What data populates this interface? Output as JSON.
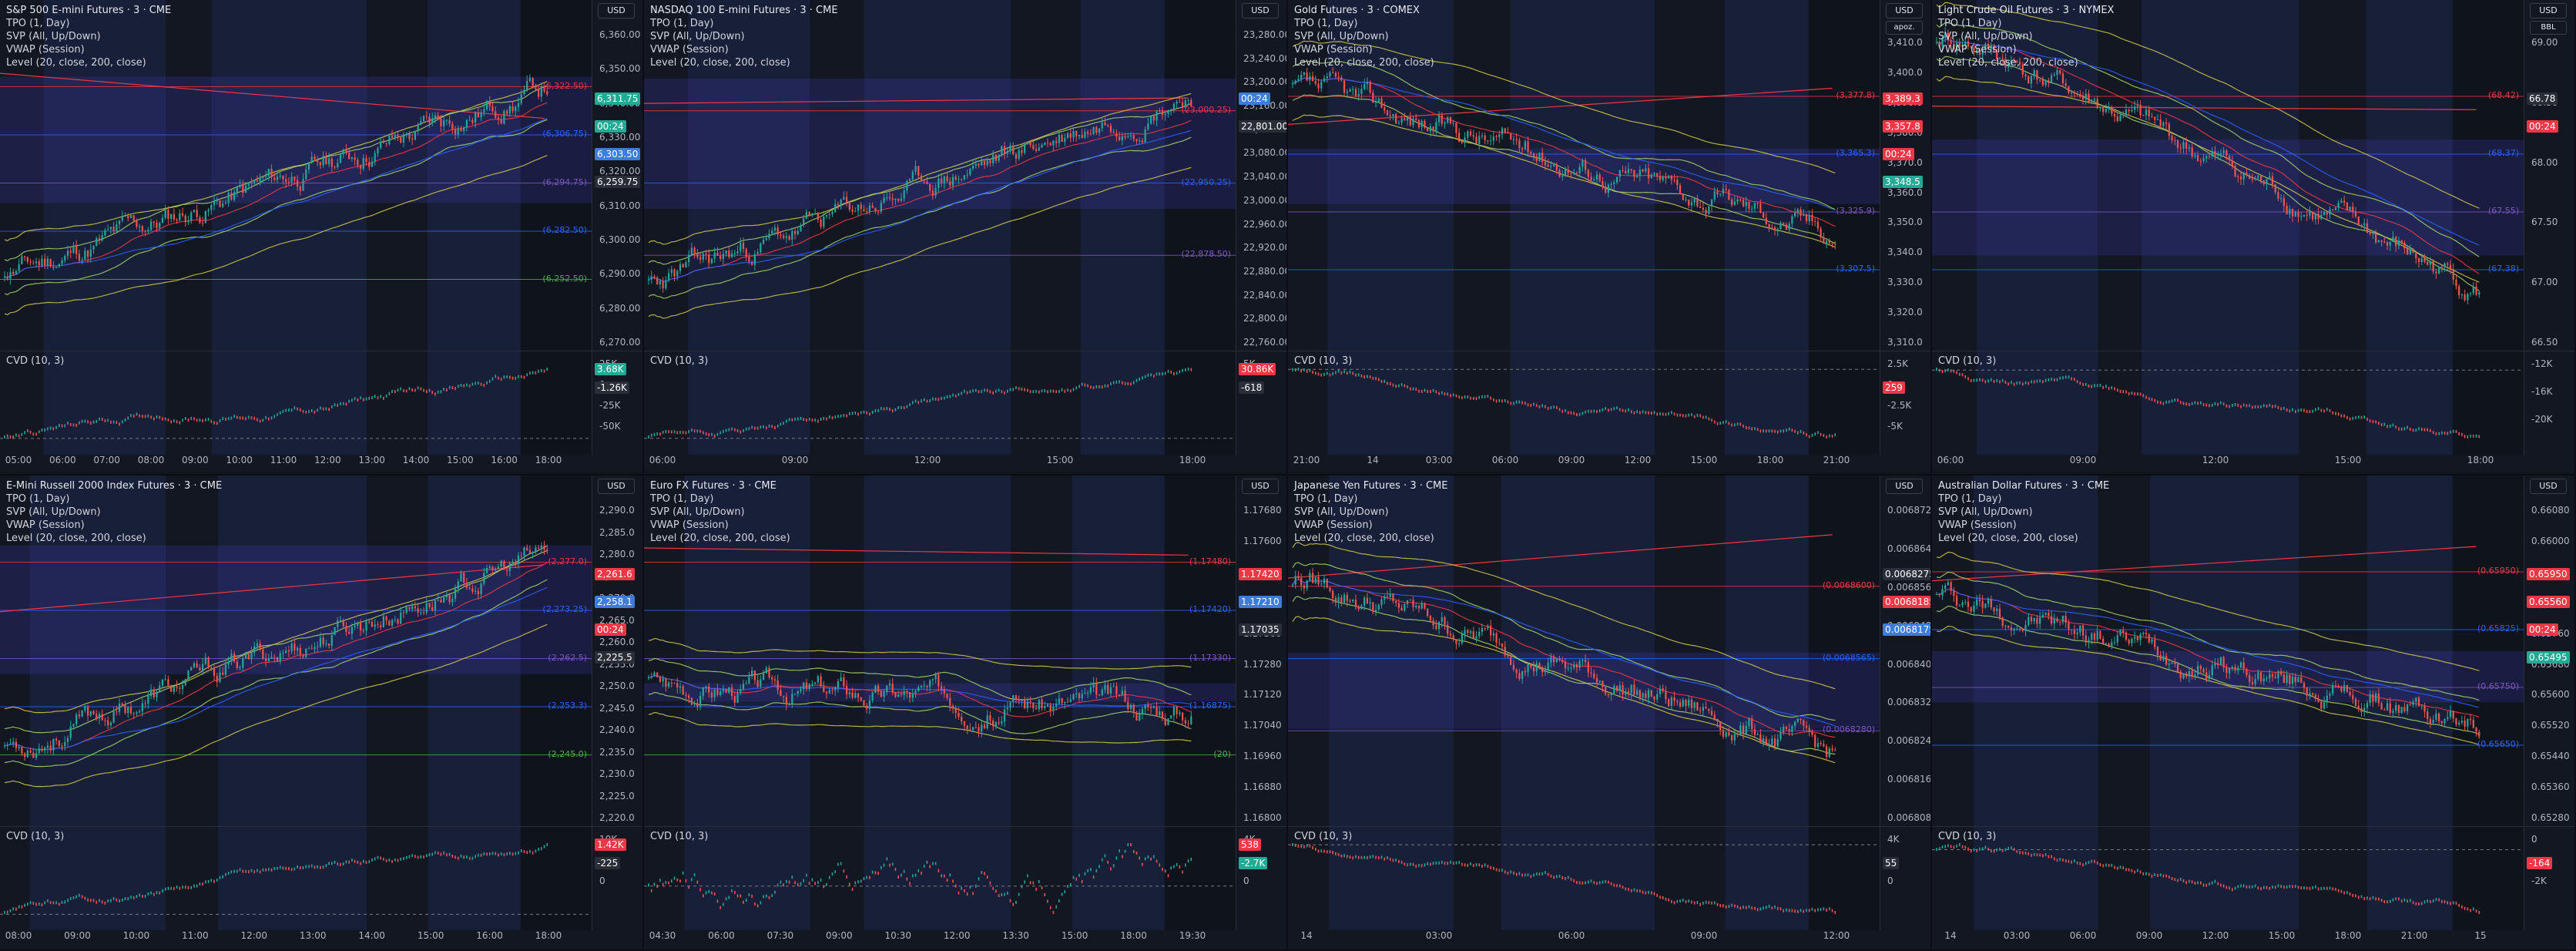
{
  "colors": {
    "background": "#131722",
    "session_band": "#1e2a57",
    "value_area": "#3b3ba0",
    "bull_candle": "#26a69a",
    "bear_candle": "#ef5350",
    "vwap": "#2962ff",
    "level_line": "#f23645",
    "sma_fast": "#a5d36b",
    "sma_slow": "#d4c84a",
    "tag_red": "#f23645",
    "tag_green": "#22ab94",
    "tag_teal": "#089981",
    "tag_blue": "#3b7ddd"
  },
  "legend_common": {
    "tpo": "TPO (1, Day)",
    "svp": "SVP (All, Up/Down)",
    "vwap": "VWAP (Session)",
    "level": "Level (20, close, 200, close)",
    "cvd": "CVD (10, 3)"
  },
  "panels": [
    {
      "title": "S&P 500 E-mini Futures · 3 · CME",
      "axis_button": "USD",
      "price_ticks": [
        "6,360.00",
        "6,350.00",
        "6,340.00",
        "6,330.00",
        "6,320.00",
        "6,310.00",
        "6,300.00",
        "6,290.00",
        "6,280.00",
        "6,270.00"
      ],
      "cvd_ticks": [
        "25K",
        "0",
        "-25K",
        "-50K"
      ],
      "time_ticks": [
        "05:00",
        "06:00",
        "07:00",
        "08:00",
        "09:00",
        "10:00",
        "11:00",
        "12:00",
        "13:00",
        "14:00",
        "15:00",
        "16:00",
        "18:00"
      ],
      "level_labels": [
        "6,322.50",
        "6,306.75",
        "6,294.75",
        "6,282.50",
        "6,252.50"
      ],
      "tags": [
        {
          "text": "6,311.75",
          "color": "#22ab94"
        },
        {
          "text": "00:24",
          "color": "#22ab94"
        },
        {
          "text": "6,303.50",
          "color": "#3b7ddd"
        },
        {
          "text": "6,259.75",
          "color": "#2a2e39"
        },
        {
          "text": "3.68K",
          "color": "#22ab94"
        },
        {
          "text": "-1.26K",
          "color": "#2a2e39"
        }
      ],
      "series": {
        "start": 6272,
        "end": 6311,
        "low": 6262,
        "high": 6323,
        "trend": "up",
        "seed": 11
      }
    },
    {
      "title": "NASDAQ 100 E-mini Futures · 3 · CME",
      "axis_button": "USD",
      "price_ticks": [
        "23,280.00",
        "23,240.00",
        "23,200.00",
        "23,160.00",
        "23,120.00",
        "23,080.00",
        "23,040.00",
        "23,000.00",
        "22,960.00",
        "22,920.00",
        "22,880.00",
        "22,840.00",
        "22,800.00",
        "22,760.00"
      ],
      "cvd_ticks": [
        "5K"
      ],
      "time_ticks": [
        "06:00",
        "09:00",
        "12:00",
        "15:00",
        "18:00"
      ],
      "level_labels": [
        "23,000.25",
        "22,950.25",
        "22,878.50"
      ],
      "tags": [
        {
          "text": "00:24",
          "color": "#3b7ddd"
        },
        {
          "text": "22,801.00",
          "color": "#2a2e39"
        },
        {
          "text": "30.86K",
          "color": "#f23645"
        },
        {
          "text": "-618",
          "color": "#2a2e39"
        }
      ],
      "series": {
        "start": 22830,
        "end": 23030,
        "low": 22790,
        "high": 23090,
        "trend": "up",
        "seed": 23
      }
    },
    {
      "title": "Gold Futures · 3 · COMEX",
      "axis_button": "USD",
      "axis_button2": "apoz.",
      "price_ticks": [
        "3,410.0",
        "3,400.0",
        "3,390.0",
        "3,380.0",
        "3,370.0",
        "3,360.0",
        "3,350.0",
        "3,340.0",
        "3,330.0",
        "3,320.0",
        "3,310.0"
      ],
      "cvd_ticks": [
        "2.5K",
        "0",
        "-2.5K",
        "-5K"
      ],
      "time_ticks": [
        "21:00",
        "14",
        "03:00",
        "06:00",
        "09:00",
        "12:00",
        "15:00",
        "18:00",
        "21:00"
      ],
      "level_labels": [
        "3,377.8",
        "3,365.3",
        "3,325.9",
        "3,307.5"
      ],
      "tags": [
        {
          "text": "3,389.3",
          "color": "#f23645"
        },
        {
          "text": "3,357.8",
          "color": "#f23645"
        },
        {
          "text": "00:24",
          "color": "#f23645"
        },
        {
          "text": "3,348.5",
          "color": "#22ab94"
        },
        {
          "text": "259",
          "color": "#f23645"
        }
      ],
      "series": {
        "start": 3380,
        "end": 3355,
        "low": 3340,
        "high": 3392,
        "trend": "down",
        "seed": 37
      }
    },
    {
      "title": "Light Crude Oil Futures · 3 · NYMEX",
      "axis_button": "USD",
      "axis_button2": "BBL",
      "price_ticks": [
        "69.00",
        "68.50",
        "68.00",
        "67.50",
        "67.00",
        "66.50"
      ],
      "cvd_ticks": [
        "-12K",
        "-16K",
        "-20K"
      ],
      "time_ticks": [
        "06:00",
        "09:00",
        "12:00",
        "15:00",
        "18:00"
      ],
      "level_labels": [
        "68.42",
        "68.37",
        "67.55",
        "67.38"
      ],
      "tags": [
        {
          "text": "66.78",
          "color": "#2a2e39"
        },
        {
          "text": "00:24",
          "color": "#f23645"
        }
      ],
      "series": {
        "start": 69.1,
        "end": 66.7,
        "low": 66.5,
        "high": 69.2,
        "trend": "down",
        "seed": 41
      }
    },
    {
      "title": "E-Mini Russell 2000 Index Futures · 3 · CME",
      "axis_button": "USD",
      "price_ticks": [
        "2,290.0",
        "2,285.0",
        "2,280.0",
        "2,275.0",
        "2,270.0",
        "2,265.0",
        "2,260.0",
        "2,255.0",
        "2,250.0",
        "2,245.0",
        "2,240.0",
        "2,235.0",
        "2,230.0",
        "2,225.0",
        "2,220.0"
      ],
      "cvd_ticks": [
        "10K",
        "0"
      ],
      "time_ticks": [
        "08:00",
        "09:00",
        "10:00",
        "11:00",
        "12:00",
        "13:00",
        "14:00",
        "15:00",
        "16:00",
        "18:00"
      ],
      "level_labels": [
        "2,277.0",
        "2,273.25",
        "2,262.5",
        "2,253.3",
        "2,245.0"
      ],
      "tags": [
        {
          "text": "2,261.6",
          "color": "#f23645"
        },
        {
          "text": "2,258.1",
          "color": "#3b7ddd"
        },
        {
          "text": "00:24",
          "color": "#f23645"
        },
        {
          "text": "2,225.5",
          "color": "#2a2e39"
        },
        {
          "text": "1.42K",
          "color": "#f23645"
        },
        {
          "text": "-225",
          "color": "#2a2e39"
        }
      ],
      "series": {
        "start": 2241,
        "end": 2260,
        "low": 2236,
        "high": 2265,
        "trend": "up",
        "seed": 53
      }
    },
    {
      "title": "Euro FX Futures · 3 · CME",
      "axis_button": "USD",
      "price_ticks": [
        "1.17680",
        "1.17600",
        "1.17520",
        "1.17440",
        "1.17360",
        "1.17280",
        "1.17120",
        "1.17040",
        "1.16960",
        "1.16880",
        "1.16800"
      ],
      "cvd_ticks": [
        "4K",
        "0"
      ],
      "time_ticks": [
        "04:30",
        "06:00",
        "07:30",
        "09:00",
        "10:30",
        "12:00",
        "13:30",
        "15:00",
        "18:00",
        "19:30"
      ],
      "level_labels": [
        "1.17480",
        "1.17420",
        "1.17330",
        "1.16875",
        "20"
      ],
      "tags": [
        {
          "text": "1.17420",
          "color": "#f23645"
        },
        {
          "text": "1.17210",
          "color": "#3b7ddd"
        },
        {
          "text": "1.17035",
          "color": "#2a2e39"
        },
        {
          "text": "538",
          "color": "#f23645"
        },
        {
          "text": "-2.7K",
          "color": "#22ab94"
        }
      ],
      "series": {
        "start": 1.1722,
        "end": 1.1718,
        "low": 1.1705,
        "high": 1.175,
        "trend": "flat",
        "seed": 67
      }
    },
    {
      "title": "Japanese Yen Futures · 3 · CME",
      "axis_button": "USD",
      "price_ticks": [
        "0.0068720",
        "0.0068640",
        "0.0068560",
        "0.0068480",
        "0.0068400",
        "0.0068320",
        "0.0068240",
        "0.0068160",
        "0.0068080"
      ],
      "cvd_ticks": [
        "4K",
        "0"
      ],
      "time_ticks": [
        "14",
        "03:00",
        "06:00",
        "09:00",
        "12:00"
      ],
      "level_labels": [
        "0.0068600",
        "0.0068565",
        "0.0068280"
      ],
      "tags": [
        {
          "text": "0.0068275",
          "color": "#2a2e39"
        },
        {
          "text": "0.0068185",
          "color": "#f23645"
        },
        {
          "text": "0.0068175",
          "color": "#3b7ddd"
        },
        {
          "text": "55",
          "color": "#2a2e39"
        }
      ],
      "series": {
        "start": 0.006842,
        "end": 0.006819,
        "low": 0.006815,
        "high": 0.006852,
        "trend": "down",
        "seed": 79
      }
    },
    {
      "title": "Australian Dollar Futures · 3 · CME",
      "axis_button": "USD",
      "price_ticks": [
        "0.66080",
        "0.66000",
        "0.65920",
        "0.65840",
        "0.65760",
        "0.65680",
        "0.65600",
        "0.65520",
        "0.65440",
        "0.65360",
        "0.65280"
      ],
      "cvd_ticks": [
        "0",
        "-2K"
      ],
      "time_ticks": [
        "14",
        "03:00",
        "06:00",
        "09:00",
        "12:00",
        "15:00",
        "18:00",
        "21:00",
        "15"
      ],
      "level_labels": [
        "0.65950",
        "0.65825",
        "0.65750",
        "0.65650"
      ],
      "tags": [
        {
          "text": "0.65950",
          "color": "#f23645"
        },
        {
          "text": "0.65560",
          "color": "#f23645"
        },
        {
          "text": "00:24",
          "color": "#f23645"
        },
        {
          "text": "0.65495",
          "color": "#22ab94"
        },
        {
          "text": "-164",
          "color": "#f23645"
        }
      ],
      "series": {
        "start": 0.6572,
        "end": 0.6553,
        "low": 0.6544,
        "high": 0.6586,
        "trend": "down",
        "seed": 97
      }
    }
  ]
}
